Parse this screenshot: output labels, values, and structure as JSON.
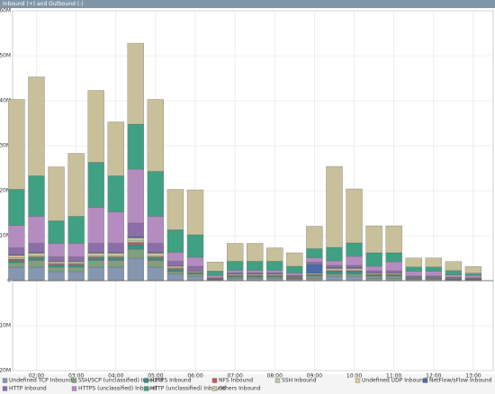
{
  "window_title": "Inbound (+) and Outbound (-)",
  "chart_data": {
    "type": "stacked_bar",
    "x": [
      1.5,
      2.0,
      2.5,
      3.0,
      3.5,
      4.0,
      4.5,
      5.0,
      5.5,
      6.0,
      6.5,
      7.0,
      7.5,
      8.0,
      8.5,
      9.0,
      9.5,
      10.0,
      10.5,
      11.0,
      11.5,
      12.0,
      12.5,
      13.0
    ],
    "xlim": [
      1.4,
      13.5
    ],
    "xticks": [
      {
        "value": 2,
        "label": "02:00"
      },
      {
        "value": 3,
        "label": "03:00"
      },
      {
        "value": 4,
        "label": "04:00"
      },
      {
        "value": 5,
        "label": "05:00"
      },
      {
        "value": 6,
        "label": "06:00"
      },
      {
        "value": 7,
        "label": "07:00"
      },
      {
        "value": 8,
        "label": "08:00"
      },
      {
        "value": 9,
        "label": "09:00"
      },
      {
        "value": 10,
        "label": "10:00"
      },
      {
        "value": 11,
        "label": "11:00"
      },
      {
        "value": 12,
        "label": "12:00"
      },
      {
        "value": 13,
        "label": "13:00"
      }
    ],
    "ylim": [
      -20,
      60
    ],
    "yticks": [
      {
        "value": 60,
        "label": "60M"
      },
      {
        "value": 50,
        "label": "50M"
      },
      {
        "value": 40,
        "label": "40M"
      },
      {
        "value": 30,
        "label": "30M"
      },
      {
        "value": 20,
        "label": "20M"
      },
      {
        "value": 10,
        "label": "10M"
      },
      0,
      {
        "value": -10,
        "label": "10M"
      },
      {
        "value": -20,
        "label": "20M"
      }
    ],
    "grid": true,
    "series": [
      {
        "name": "Undefined TCP Inbound",
        "color": "#8496b0",
        "values": [
          3,
          3,
          2,
          2,
          3,
          3,
          5,
          3,
          1.5,
          1,
          0.2,
          0.5,
          0.5,
          0.5,
          0.3,
          0.5,
          1,
          1,
          0.5,
          0.5,
          0.3,
          0.3,
          0.2,
          0.2
        ]
      },
      {
        "name": "SSH/SCP (unclassified) Inbound",
        "color": "#7f9f7f",
        "values": [
          1,
          1.5,
          1,
          1,
          1.5,
          1.5,
          2,
          1.5,
          0.5,
          0.5,
          0.1,
          0.3,
          0.3,
          0.3,
          0.2,
          0.5,
          0.5,
          0.5,
          0.5,
          0.5,
          0.2,
          0.2,
          0.1,
          0.1
        ]
      },
      {
        "name": "HTTPS Inbound",
        "color": "#3a8f88",
        "values": [
          0.5,
          0.5,
          0.5,
          0.5,
          0.5,
          0.5,
          1,
          0.5,
          0.5,
          0.2,
          0.05,
          0.2,
          0.2,
          0.2,
          0.1,
          0.2,
          0.5,
          0.5,
          0.2,
          0.2,
          0.1,
          0.1,
          0.1,
          0.05
        ]
      },
      {
        "name": "NFS Inbound",
        "color": "#c05a5a",
        "values": [
          0.3,
          0.3,
          0.2,
          0.2,
          0.3,
          0.3,
          0.5,
          0.3,
          0.2,
          0.1,
          0.05,
          0.1,
          0.1,
          0.1,
          0.1,
          0.1,
          0.2,
          0.2,
          0.1,
          0.1,
          0.05,
          0.05,
          0.05,
          0.05
        ]
      },
      {
        "name": "SSH Inbound",
        "color": "#b4c8a4",
        "values": [
          0.3,
          0.3,
          0.2,
          0.2,
          0.3,
          0.3,
          0.5,
          0.3,
          0.2,
          0.1,
          0.05,
          0.1,
          0.1,
          0.1,
          0.1,
          0.1,
          0.2,
          0.2,
          0.1,
          0.1,
          0.05,
          0.05,
          0.05,
          0.05
        ]
      },
      {
        "name": "Undefined UDP Inbound",
        "color": "#d8c898",
        "values": [
          0.5,
          0.5,
          0.3,
          0.3,
          0.5,
          0.5,
          0.5,
          0.5,
          0.3,
          0.2,
          0.05,
          0.2,
          0.2,
          0.2,
          0.1,
          0.2,
          0.3,
          0.3,
          0.2,
          0.2,
          0.1,
          0.1,
          0.1,
          0.05
        ]
      },
      {
        "name": "NetFlow/sFlow Inbound",
        "color": "#4a6aa8",
        "values": [
          0.2,
          0.2,
          0.1,
          0.1,
          0.2,
          0.2,
          0.3,
          0.2,
          0.1,
          0.1,
          0.05,
          0.1,
          0.1,
          0.1,
          0.1,
          2,
          0.2,
          0.2,
          0.1,
          0.1,
          0.05,
          0.05,
          0.05,
          0.05
        ]
      },
      {
        "name": "HTTP Inbound",
        "color": "#8c6fa8",
        "values": [
          1.5,
          2,
          1,
          1,
          2,
          2,
          3,
          2,
          1,
          1,
          0.1,
          0.3,
          0.3,
          0.3,
          0.2,
          0.5,
          0.5,
          0.5,
          0.5,
          0.5,
          0.2,
          0.2,
          0.1,
          0.1
        ]
      },
      {
        "name": "HTTPS (unclassified) Inbound",
        "color": "#b48cc0",
        "values": [
          5,
          6,
          3,
          3,
          8,
          7,
          12,
          6,
          2,
          2,
          0.5,
          0.5,
          0.5,
          0.5,
          0.5,
          1,
          1,
          2,
          1,
          2,
          1,
          1,
          0.5,
          0.5
        ]
      },
      {
        "name": "HTTP (unclassified) Inbound",
        "color": "#40a082",
        "values": [
          8,
          9,
          5,
          6,
          10,
          8,
          10,
          10,
          5,
          5,
          1,
          2,
          2,
          2,
          1.5,
          2,
          3,
          3,
          3,
          2,
          1,
          1,
          1,
          0.5
        ]
      },
      {
        "name": "Others Inbound",
        "color": "#c8c09a",
        "values": [
          20,
          22,
          12,
          14,
          16,
          12,
          18,
          16,
          9,
          10,
          2,
          4,
          4,
          3,
          3,
          5,
          18,
          12,
          6,
          6,
          2,
          2,
          2,
          1.5
        ]
      }
    ]
  }
}
